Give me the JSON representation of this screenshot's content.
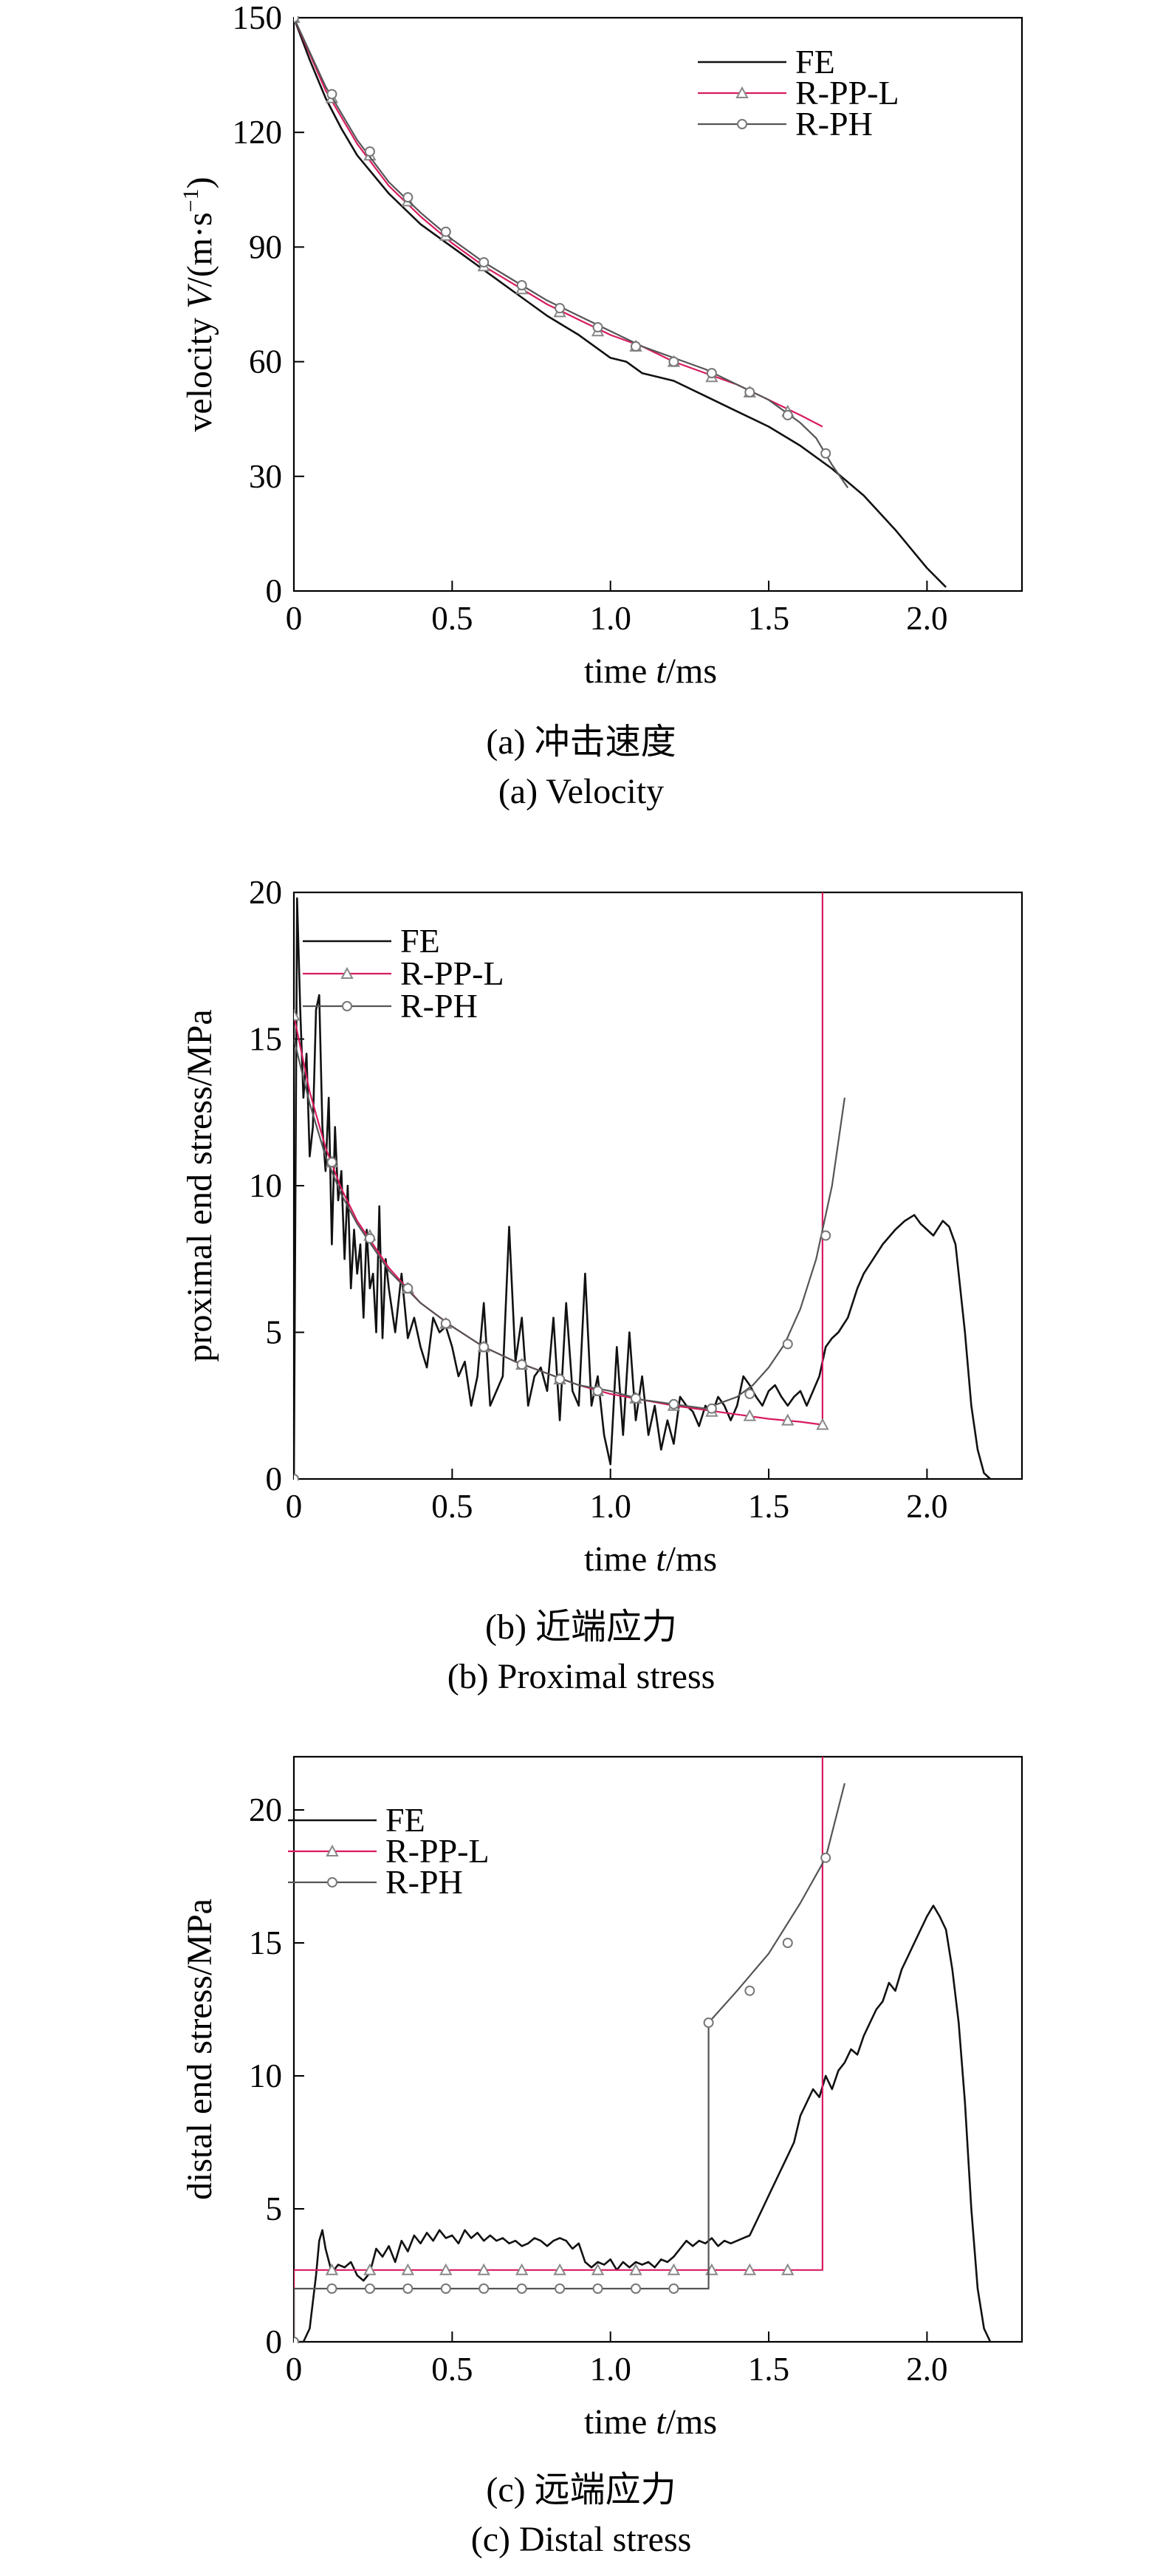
{
  "chart_data": [
    {
      "type": "line",
      "panel": "a",
      "xlabel_parts": [
        "time ",
        "t",
        "/ms"
      ],
      "ylabel_parts": [
        "velocity ",
        "V",
        "/(m·s",
        "−1",
        ")"
      ],
      "xlim": [
        0,
        2.3
      ],
      "ylim": [
        0,
        150
      ],
      "xticks": [
        0,
        0.5,
        1.0,
        1.5,
        2.0
      ],
      "xtick_labels": [
        "0",
        "0.5",
        "1.0",
        "1.5",
        "2.0"
      ],
      "yticks": [
        0,
        30,
        60,
        90,
        120,
        150
      ],
      "ytick_labels": [
        "0",
        "30",
        "60",
        "90",
        "120",
        "150"
      ],
      "legend_position": "top-right",
      "caption_cn": "(a) 冲击速度",
      "caption_en": "(a) Velocity",
      "series": [
        {
          "name": "FE",
          "color": "#111111",
          "marker": "none",
          "x": [
            0,
            0.05,
            0.1,
            0.15,
            0.2,
            0.3,
            0.4,
            0.5,
            0.6,
            0.7,
            0.8,
            0.9,
            1.0,
            1.05,
            1.1,
            1.2,
            1.3,
            1.4,
            1.5,
            1.6,
            1.7,
            1.8,
            1.9,
            2.0,
            2.06
          ],
          "y": [
            150,
            139,
            129,
            121,
            114,
            104,
            96,
            90,
            84,
            78,
            72,
            67,
            61,
            60,
            57,
            55,
            51,
            47,
            43,
            38,
            32,
            25,
            16,
            6,
            1
          ]
        },
        {
          "name": "R-PP-L",
          "color": "#d81b60",
          "marker": "triangle",
          "x": [
            0,
            0.1,
            0.2,
            0.3,
            0.4,
            0.5,
            0.6,
            0.7,
            0.8,
            0.9,
            1.0,
            1.1,
            1.2,
            1.3,
            1.4,
            1.5,
            1.6,
            1.67
          ],
          "y": [
            150,
            131,
            117,
            106,
            98,
            91,
            85,
            80,
            75,
            71,
            67,
            64,
            60,
            57,
            54,
            50,
            46,
            43
          ],
          "marker_x": [
            0,
            0.12,
            0.24,
            0.36,
            0.48,
            0.6,
            0.72,
            0.84,
            0.96,
            1.08,
            1.2,
            1.32,
            1.44,
            1.56
          ],
          "marker_y": [
            150,
            129,
            114,
            102,
            93,
            85,
            79,
            73,
            68,
            64,
            60,
            56,
            52,
            47
          ]
        },
        {
          "name": "R-PH",
          "color": "#555555",
          "marker": "circle",
          "x": [
            0,
            0.1,
            0.2,
            0.3,
            0.4,
            0.5,
            0.6,
            0.7,
            0.8,
            0.9,
            1.0,
            1.1,
            1.2,
            1.3,
            1.4,
            1.5,
            1.6,
            1.65,
            1.7,
            1.75
          ],
          "y": [
            150,
            132,
            118,
            107,
            99,
            92,
            86,
            81,
            76,
            72,
            68,
            64,
            61,
            58,
            54,
            50,
            44,
            40,
            33,
            27
          ],
          "marker_x": [
            0,
            0.12,
            0.24,
            0.36,
            0.48,
            0.6,
            0.72,
            0.84,
            0.96,
            1.08,
            1.2,
            1.32,
            1.44,
            1.56,
            1.68
          ],
          "marker_y": [
            150,
            130,
            115,
            103,
            94,
            86,
            80,
            74,
            69,
            64,
            60,
            57,
            52,
            46,
            36
          ]
        }
      ]
    },
    {
      "type": "line",
      "panel": "b",
      "xlabel_parts": [
        "time ",
        "t",
        "/ms"
      ],
      "ylabel_parts": [
        "proximal end stress/MPa"
      ],
      "xlim": [
        0,
        2.3
      ],
      "ylim": [
        0,
        20
      ],
      "xticks": [
        0,
        0.5,
        1.0,
        1.5,
        2.0
      ],
      "xtick_labels": [
        "0",
        "0.5",
        "1.0",
        "1.5",
        "2.0"
      ],
      "yticks": [
        0,
        5,
        10,
        15,
        20
      ],
      "ytick_labels": [
        "0",
        "5",
        "10",
        "15",
        "20"
      ],
      "legend_position": "top-left",
      "caption_cn": "(b) 近端应力",
      "caption_en": "(b) Proximal stress",
      "series": [
        {
          "name": "FE",
          "color": "#111111",
          "marker": "none",
          "x": [
            0,
            0.01,
            0.02,
            0.03,
            0.04,
            0.05,
            0.06,
            0.07,
            0.08,
            0.09,
            0.1,
            0.11,
            0.12,
            0.13,
            0.14,
            0.15,
            0.16,
            0.17,
            0.18,
            0.19,
            0.2,
            0.21,
            0.22,
            0.23,
            0.24,
            0.25,
            0.26,
            0.27,
            0.28,
            0.29,
            0.3,
            0.32,
            0.34,
            0.36,
            0.38,
            0.4,
            0.42,
            0.44,
            0.46,
            0.48,
            0.5,
            0.52,
            0.54,
            0.56,
            0.58,
            0.6,
            0.62,
            0.64,
            0.66,
            0.68,
            0.7,
            0.72,
            0.74,
            0.76,
            0.78,
            0.8,
            0.82,
            0.84,
            0.86,
            0.88,
            0.9,
            0.92,
            0.94,
            0.96,
            0.98,
            1.0,
            1.02,
            1.04,
            1.06,
            1.08,
            1.1,
            1.12,
            1.14,
            1.16,
            1.18,
            1.2,
            1.22,
            1.24,
            1.26,
            1.28,
            1.3,
            1.32,
            1.34,
            1.36,
            1.38,
            1.4,
            1.42,
            1.44,
            1.46,
            1.48,
            1.5,
            1.52,
            1.54,
            1.56,
            1.58,
            1.6,
            1.62,
            1.64,
            1.66,
            1.68,
            1.7,
            1.72,
            1.75,
            1.78,
            1.8,
            1.83,
            1.86,
            1.9,
            1.93,
            1.96,
            1.98,
            2.0,
            2.02,
            2.05,
            2.07,
            2.09,
            2.1,
            2.12,
            2.14,
            2.16,
            2.18,
            2.2
          ],
          "y": [
            0,
            19.8,
            16.0,
            13.0,
            14.5,
            11.0,
            12.0,
            16.0,
            16.5,
            12.0,
            10.5,
            13.0,
            8.0,
            12.0,
            9.5,
            10.5,
            7.5,
            10.0,
            6.5,
            8.5,
            7.0,
            8.0,
            5.5,
            8.5,
            6.5,
            7.0,
            5.0,
            9.3,
            4.8,
            7.5,
            6.5,
            5.0,
            7.0,
            4.8,
            5.5,
            4.5,
            3.8,
            5.5,
            5.0,
            5.2,
            4.5,
            3.5,
            4.0,
            2.5,
            3.5,
            6.0,
            2.5,
            3.0,
            3.5,
            8.6,
            4.0,
            5.5,
            2.5,
            3.5,
            3.8,
            3.0,
            5.5,
            2.0,
            6.0,
            3.0,
            2.5,
            7.0,
            2.5,
            3.5,
            1.5,
            0.5,
            4.5,
            1.5,
            5.0,
            2.0,
            3.5,
            1.5,
            2.5,
            1.0,
            2.0,
            1.2,
            2.8,
            2.5,
            2.3,
            1.8,
            2.5,
            2.2,
            2.8,
            2.5,
            2.0,
            2.5,
            3.5,
            3.2,
            2.8,
            2.5,
            3.0,
            3.2,
            2.8,
            2.5,
            2.8,
            3.0,
            2.5,
            3.0,
            3.5,
            4.5,
            4.8,
            5.0,
            5.5,
            6.5,
            7.0,
            7.5,
            8.0,
            8.5,
            8.8,
            9.0,
            8.7,
            8.5,
            8.3,
            8.8,
            8.6,
            8.0,
            7.0,
            5.0,
            2.5,
            1.0,
            0.2,
            0
          ]
        },
        {
          "name": "R-PP-L",
          "color": "#d81b60",
          "marker": "triangle",
          "x": [
            0,
            0.05,
            0.1,
            0.15,
            0.2,
            0.3,
            0.4,
            0.5,
            0.6,
            0.7,
            0.8,
            0.9,
            1.0,
            1.1,
            1.2,
            1.3,
            1.4,
            1.5,
            1.6,
            1.67,
            1.67,
            1.67
          ],
          "y": [
            15.8,
            13.2,
            11.3,
            9.9,
            8.8,
            7.2,
            6.0,
            5.2,
            4.5,
            4.0,
            3.6,
            3.2,
            2.9,
            2.7,
            2.5,
            2.35,
            2.2,
            2.05,
            1.95,
            1.85,
            1.85,
            20.0
          ],
          "marker_x": [
            0,
            0.12,
            0.24,
            0.36,
            0.48,
            0.6,
            0.72,
            0.84,
            0.96,
            1.08,
            1.2,
            1.32,
            1.44,
            1.56,
            1.67
          ],
          "marker_y": [
            15.8,
            10.8,
            8.3,
            6.5,
            5.3,
            4.5,
            3.9,
            3.4,
            3.0,
            2.75,
            2.5,
            2.3,
            2.15,
            2.0,
            1.85
          ]
        },
        {
          "name": "R-PH",
          "color": "#555555",
          "marker": "circle",
          "x": [
            0,
            0.05,
            0.1,
            0.15,
            0.2,
            0.3,
            0.4,
            0.5,
            0.6,
            0.7,
            0.8,
            0.9,
            1.0,
            1.1,
            1.2,
            1.3,
            1.4,
            1.45,
            1.5,
            1.55,
            1.6,
            1.65,
            1.7,
            1.74
          ],
          "y": [
            15.0,
            12.8,
            11.0,
            9.7,
            8.7,
            7.1,
            6.0,
            5.2,
            4.5,
            4.0,
            3.6,
            3.2,
            3.0,
            2.7,
            2.55,
            2.4,
            2.8,
            3.2,
            3.8,
            4.6,
            5.8,
            7.5,
            10.0,
            13.0
          ],
          "marker_x": [
            0,
            0.12,
            0.24,
            0.36,
            0.48,
            0.6,
            0.72,
            0.84,
            0.96,
            1.08,
            1.2,
            1.32,
            1.44,
            1.56,
            1.68
          ],
          "marker_y": [
            0,
            10.8,
            8.2,
            6.5,
            5.3,
            4.5,
            3.9,
            3.4,
            3.0,
            2.75,
            2.55,
            2.4,
            2.9,
            4.6,
            8.3
          ]
        }
      ]
    },
    {
      "type": "line",
      "panel": "c",
      "xlabel_parts": [
        "time ",
        "t",
        "/ms"
      ],
      "ylabel_parts": [
        "distal end stress/MPa"
      ],
      "xlim": [
        0,
        2.3
      ],
      "ylim": [
        0,
        22
      ],
      "xticks": [
        0,
        0.5,
        1.0,
        1.5,
        2.0
      ],
      "xtick_labels": [
        "0",
        "0.5",
        "1.0",
        "1.5",
        "2.0"
      ],
      "yticks": [
        0,
        5,
        10,
        15,
        20
      ],
      "ytick_labels": [
        "0",
        "5",
        "10",
        "15",
        "20"
      ],
      "legend_position": "top-left",
      "caption_cn": "(c) 远端应力",
      "caption_en": "(c) Distal stress",
      "series": [
        {
          "name": "FE",
          "color": "#111111",
          "marker": "none",
          "x": [
            0,
            0.03,
            0.05,
            0.07,
            0.08,
            0.09,
            0.1,
            0.12,
            0.14,
            0.16,
            0.18,
            0.2,
            0.22,
            0.24,
            0.26,
            0.28,
            0.3,
            0.32,
            0.34,
            0.36,
            0.38,
            0.4,
            0.42,
            0.44,
            0.46,
            0.48,
            0.5,
            0.52,
            0.54,
            0.56,
            0.58,
            0.6,
            0.62,
            0.64,
            0.66,
            0.68,
            0.7,
            0.72,
            0.74,
            0.76,
            0.78,
            0.8,
            0.82,
            0.84,
            0.86,
            0.88,
            0.9,
            0.92,
            0.94,
            0.96,
            0.98,
            1.0,
            1.02,
            1.04,
            1.06,
            1.08,
            1.1,
            1.12,
            1.14,
            1.16,
            1.18,
            1.2,
            1.22,
            1.24,
            1.26,
            1.28,
            1.3,
            1.32,
            1.34,
            1.36,
            1.38,
            1.4,
            1.42,
            1.44,
            1.46,
            1.48,
            1.5,
            1.52,
            1.54,
            1.56,
            1.58,
            1.6,
            1.62,
            1.64,
            1.66,
            1.68,
            1.7,
            1.72,
            1.74,
            1.76,
            1.78,
            1.8,
            1.82,
            1.84,
            1.86,
            1.88,
            1.9,
            1.92,
            1.94,
            1.96,
            1.98,
            2.0,
            2.02,
            2.04,
            2.06,
            2.08,
            2.1,
            2.12,
            2.14,
            2.16,
            2.18,
            2.2
          ],
          "y": [
            0,
            0,
            0.5,
            2.5,
            3.8,
            4.2,
            3.5,
            2.6,
            2.9,
            2.8,
            3.0,
            2.5,
            2.3,
            2.6,
            3.5,
            3.2,
            3.6,
            3.0,
            3.8,
            3.4,
            4.0,
            3.7,
            4.1,
            3.8,
            4.2,
            3.9,
            4.0,
            3.7,
            4.2,
            3.9,
            4.1,
            3.8,
            4.0,
            3.8,
            3.9,
            3.7,
            3.8,
            3.6,
            3.7,
            3.9,
            3.8,
            3.6,
            3.8,
            3.9,
            3.8,
            3.5,
            3.7,
            3.0,
            2.8,
            3.0,
            2.9,
            3.1,
            2.7,
            3.0,
            2.8,
            3.0,
            2.9,
            3.0,
            2.8,
            3.1,
            3.0,
            3.2,
            3.5,
            3.8,
            3.6,
            3.8,
            3.7,
            3.9,
            3.6,
            3.8,
            3.7,
            3.8,
            3.9,
            4.0,
            4.5,
            5.0,
            5.5,
            6.0,
            6.5,
            7.0,
            7.5,
            8.5,
            9.0,
            9.5,
            9.2,
            10.0,
            9.5,
            10.2,
            10.5,
            11.0,
            10.8,
            11.5,
            12.0,
            12.5,
            12.8,
            13.5,
            13.2,
            14.0,
            14.5,
            15.0,
            15.5,
            16.0,
            16.4,
            16.0,
            15.5,
            14.0,
            12.0,
            9.0,
            5.0,
            2.0,
            0.5,
            0
          ],
          "note_x": "continuous"
        },
        {
          "name": "R-PP-L",
          "color": "#d81b60",
          "marker": "triangle",
          "x": [
            0,
            0,
            1.67,
            1.67
          ],
          "y": [
            0,
            2.7,
            2.7,
            22
          ],
          "marker_x": [
            0.12,
            0.24,
            0.36,
            0.48,
            0.6,
            0.72,
            0.84,
            0.96,
            1.08,
            1.2,
            1.32,
            1.44,
            1.56
          ],
          "marker_y": [
            2.7,
            2.7,
            2.7,
            2.7,
            2.7,
            2.7,
            2.7,
            2.7,
            2.7,
            2.7,
            2.7,
            2.7,
            2.7
          ]
        },
        {
          "name": "R-PH",
          "color": "#555555",
          "marker": "circle",
          "x": [
            0,
            0,
            1.31,
            1.31,
            1.4,
            1.5,
            1.6,
            1.68,
            1.74
          ],
          "y": [
            0,
            2.0,
            2.0,
            12.0,
            13.2,
            14.6,
            16.5,
            18.2,
            21.0
          ],
          "marker_x": [
            0,
            0.12,
            0.24,
            0.36,
            0.48,
            0.6,
            0.72,
            0.84,
            0.96,
            1.08,
            1.2,
            1.31,
            1.44,
            1.56,
            1.68
          ],
          "marker_y": [
            0,
            2.0,
            2.0,
            2.0,
            2.0,
            2.0,
            2.0,
            2.0,
            2.0,
            2.0,
            2.0,
            12.0,
            13.2,
            15.0,
            18.2
          ]
        }
      ]
    }
  ]
}
